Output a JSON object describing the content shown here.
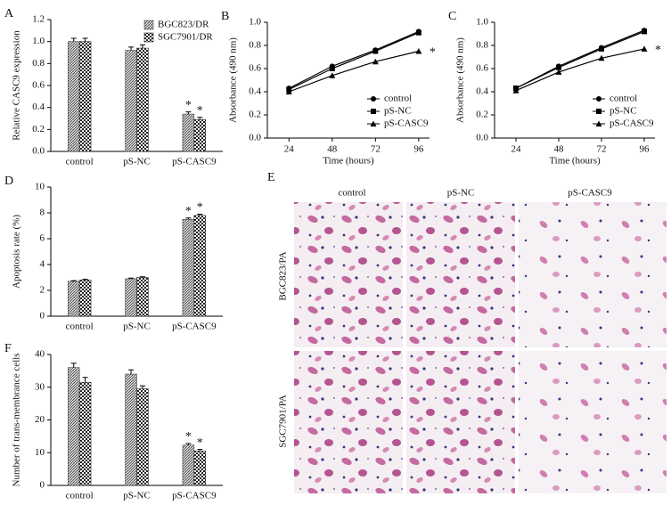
{
  "chart_data": [
    {
      "type": "bar",
      "panel": "A",
      "ylabel": "Relative CASC9 expression",
      "categories": [
        "control",
        "pS-NC",
        "pS-CASC9"
      ],
      "series": [
        {
          "name": "BGC823/DR",
          "color": "#444444",
          "pattern": "hatch",
          "values": [
            1.0,
            0.92,
            0.34
          ],
          "errors": [
            0.03,
            0.03,
            0.02
          ],
          "significance": [
            null,
            null,
            "*"
          ]
        },
        {
          "name": "SGC7901/DR",
          "color": "#222222",
          "pattern": "checker",
          "values": [
            1.0,
            0.94,
            0.29
          ],
          "errors": [
            0.03,
            0.03,
            0.02
          ],
          "significance": [
            null,
            null,
            "*"
          ]
        }
      ],
      "ylim": [
        0,
        1.2
      ],
      "yticks": [
        {
          "value": 0,
          "label": "0.0"
        },
        {
          "value": 0.2,
          "label": "0.2"
        },
        {
          "value": 0.4,
          "label": "0.4"
        },
        {
          "value": 0.6,
          "label": "0.6"
        },
        {
          "value": 0.8,
          "label": "0.8"
        },
        {
          "value": 1.0,
          "label": "1.0"
        },
        {
          "value": 1.2,
          "label": "1.2"
        }
      ],
      "legend": "upper right"
    },
    {
      "type": "line",
      "panel": "B",
      "ylabel": "Absorbance (490 nm)",
      "xlabel": "Time (hours)",
      "x": [
        24,
        48,
        72,
        96
      ],
      "series": [
        {
          "name": "control",
          "color": "#000000",
          "marker": "circle",
          "values": [
            0.43,
            0.62,
            0.76,
            0.92
          ],
          "significance": [
            null,
            null,
            null,
            null
          ]
        },
        {
          "name": "pS-NC",
          "color": "#000000",
          "marker": "square",
          "values": [
            0.42,
            0.6,
            0.75,
            0.91
          ],
          "significance": [
            null,
            null,
            null,
            null
          ]
        },
        {
          "name": "pS-CASC9",
          "color": "#000000",
          "marker": "triangle",
          "values": [
            0.4,
            0.54,
            0.66,
            0.75
          ],
          "significance": [
            null,
            null,
            null,
            "*"
          ]
        }
      ],
      "xlim": [
        12,
        102
      ],
      "xticks": [
        24,
        48,
        72,
        96
      ],
      "ylim": [
        0,
        1.0
      ],
      "yticks": [
        {
          "value": 0,
          "label": "0.0"
        },
        {
          "value": 0.2,
          "label": "0.2"
        },
        {
          "value": 0.4,
          "label": "0.4"
        },
        {
          "value": 0.6,
          "label": "0.6"
        },
        {
          "value": 0.8,
          "label": "0.8"
        },
        {
          "value": 1.0,
          "label": "1.0"
        }
      ],
      "legend": "lower right"
    },
    {
      "type": "line",
      "panel": "C",
      "ylabel": "Absorbance (490 nm)",
      "xlabel": "Time (hours)",
      "x": [
        24,
        48,
        72,
        96
      ],
      "series": [
        {
          "name": "control",
          "color": "#000000",
          "marker": "circle",
          "values": [
            0.43,
            0.62,
            0.78,
            0.93
          ],
          "significance": [
            null,
            null,
            null,
            null
          ]
        },
        {
          "name": "pS-NC",
          "color": "#000000",
          "marker": "square",
          "values": [
            0.43,
            0.61,
            0.77,
            0.92
          ],
          "significance": [
            null,
            null,
            null,
            null
          ]
        },
        {
          "name": "pS-CASC9",
          "color": "#000000",
          "marker": "triangle",
          "values": [
            0.41,
            0.57,
            0.69,
            0.77
          ],
          "significance": [
            null,
            null,
            null,
            "*"
          ]
        }
      ],
      "xlim": [
        12,
        102
      ],
      "xticks": [
        24,
        48,
        72,
        96
      ],
      "ylim": [
        0,
        1.0
      ],
      "yticks": [
        {
          "value": 0,
          "label": "0.0"
        },
        {
          "value": 0.2,
          "label": "0.2"
        },
        {
          "value": 0.4,
          "label": "0.4"
        },
        {
          "value": 0.6,
          "label": "0.6"
        },
        {
          "value": 0.8,
          "label": "0.8"
        },
        {
          "value": 1.0,
          "label": "1.0"
        }
      ],
      "legend": "lower right"
    },
    {
      "type": "bar",
      "panel": "D",
      "ylabel": "Apoptosis rate (%)",
      "categories": [
        "control",
        "pS-NC",
        "pS-CASC9"
      ],
      "series": [
        {
          "color": "#444444",
          "pattern": "hatch",
          "values": [
            2.7,
            2.9,
            7.5
          ],
          "errors": [
            0.05,
            0.05,
            0.1
          ],
          "significance": [
            null,
            null,
            "*"
          ]
        },
        {
          "color": "#222222",
          "pattern": "checker",
          "values": [
            2.8,
            3.0,
            7.8
          ],
          "errors": [
            0.05,
            0.05,
            0.1
          ],
          "significance": [
            null,
            null,
            "*"
          ]
        }
      ],
      "ylim": [
        0,
        10
      ],
      "yticks": [
        0,
        2,
        4,
        6,
        8,
        10
      ]
    },
    {
      "type": "bar",
      "panel": "F",
      "ylabel": "Number of trans-membrance cells",
      "categories": [
        "control",
        "pS-NC",
        "pS-CASC9"
      ],
      "series": [
        {
          "color": "#444444",
          "pattern": "hatch",
          "values": [
            36,
            34,
            12.3
          ],
          "errors": [
            1.3,
            1.3,
            0.5
          ],
          "significance": [
            null,
            null,
            "*"
          ]
        },
        {
          "color": "#222222",
          "pattern": "checker",
          "values": [
            31.5,
            29.5,
            10.5
          ],
          "errors": [
            1.5,
            0.9,
            0.5
          ],
          "significance": [
            null,
            null,
            "*"
          ]
        }
      ],
      "ylim": [
        0,
        40
      ],
      "yticks": [
        0,
        10,
        20,
        30,
        40
      ]
    }
  ],
  "figure_e": {
    "panel": "E",
    "columns": [
      "control",
      "pS-NC",
      "pS-CASC9"
    ],
    "rows": [
      "BGC823/PA",
      "SGC7901/PA"
    ]
  }
}
